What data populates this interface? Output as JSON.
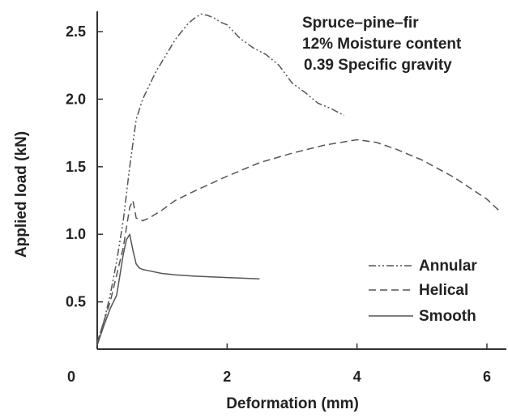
{
  "chart_data": {
    "type": "line",
    "title": "",
    "xlabel": "Deformation (mm)",
    "ylabel": "Applied load (kN)",
    "xlim": [
      0,
      6.3
    ],
    "ylim": [
      0.15,
      2.65
    ],
    "x_ticks": [
      0,
      2,
      4,
      6
    ],
    "x_tick_labels": [
      "0",
      "2",
      "4",
      "6"
    ],
    "y_ticks": [
      0.5,
      1.0,
      1.5,
      2.0,
      2.5
    ],
    "y_tick_labels": [
      "0.5",
      "1.0",
      "1.5",
      "2.0",
      "2.5"
    ],
    "grid": false,
    "annotations": [
      "Spruce–pine–fir",
      "12% Moisture content",
      "0.39 Specific gravity"
    ],
    "legend": {
      "position": "bottom-right",
      "entries": [
        "Annular",
        "Helical",
        "Smooth"
      ]
    },
    "series": [
      {
        "name": "Annular",
        "line_style": "dash-dot-dot",
        "x": [
          0,
          0.1,
          0.2,
          0.3,
          0.4,
          0.5,
          0.6,
          0.7,
          0.8,
          0.9,
          1.0,
          1.1,
          1.2,
          1.3,
          1.4,
          1.5,
          1.6,
          1.7,
          1.8,
          1.9,
          2.0,
          2.2,
          2.4,
          2.6,
          2.8,
          3.0,
          3.2,
          3.4,
          3.6,
          3.8
        ],
        "y": [
          0.2,
          0.35,
          0.55,
          0.8,
          1.1,
          1.5,
          1.85,
          2.0,
          2.1,
          2.2,
          2.28,
          2.36,
          2.44,
          2.5,
          2.56,
          2.6,
          2.63,
          2.62,
          2.6,
          2.57,
          2.55,
          2.45,
          2.38,
          2.33,
          2.25,
          2.12,
          2.05,
          1.97,
          1.93,
          1.88
        ]
      },
      {
        "name": "Helical",
        "line_style": "dashed",
        "x": [
          0,
          0.1,
          0.2,
          0.3,
          0.4,
          0.45,
          0.5,
          0.55,
          0.6,
          0.7,
          0.8,
          1.0,
          1.2,
          1.5,
          2.0,
          2.5,
          3.0,
          3.5,
          4.0,
          4.3,
          4.6,
          5.0,
          5.5,
          6.0,
          6.2
        ],
        "y": [
          0.2,
          0.35,
          0.5,
          0.7,
          0.9,
          1.05,
          1.2,
          1.25,
          1.12,
          1.1,
          1.12,
          1.18,
          1.25,
          1.32,
          1.43,
          1.53,
          1.6,
          1.66,
          1.7,
          1.68,
          1.63,
          1.55,
          1.42,
          1.26,
          1.17
        ]
      },
      {
        "name": "Smooth",
        "line_style": "solid",
        "x": [
          0,
          0.1,
          0.2,
          0.3,
          0.35,
          0.4,
          0.45,
          0.5,
          0.55,
          0.6,
          0.65,
          0.7,
          0.8,
          1.0,
          1.2,
          1.5,
          2.0,
          2.5
        ],
        "y": [
          0.18,
          0.32,
          0.45,
          0.55,
          0.7,
          0.85,
          0.96,
          1.0,
          0.88,
          0.78,
          0.75,
          0.74,
          0.73,
          0.71,
          0.7,
          0.69,
          0.68,
          0.67
        ]
      }
    ]
  }
}
